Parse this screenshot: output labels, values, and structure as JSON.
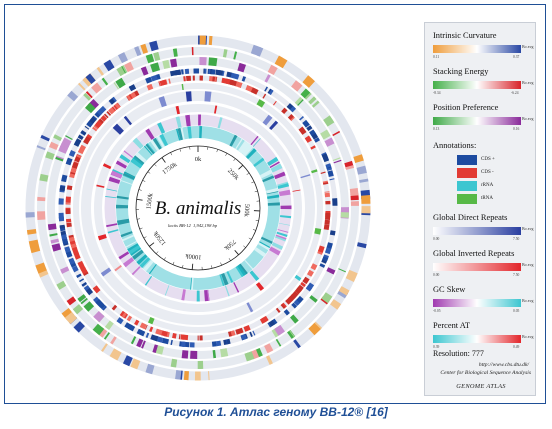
{
  "diagram": {
    "species": "B. animalis",
    "strain_line": "lactis BB-12",
    "genome_size": "1,942,198 bp",
    "scale_labels": [
      "0k",
      "250k",
      "500k",
      "750k",
      "1000k",
      "1250k",
      "1500k",
      "1750k"
    ],
    "legend": {
      "intrinsic_curvature": {
        "title": "Intrinsic Curvature",
        "min": "0.11",
        "max": "0.37",
        "unit": "Bo avg",
        "colors": [
          "#ef9d3c",
          "#ffffff",
          "#2948a4"
        ]
      },
      "stacking_energy": {
        "title": "Stacking Energy",
        "min": "-8.34",
        "max": "-6.24",
        "unit": "Bo avg",
        "colors": [
          "#45b04a",
          "#ffffff",
          "#d8232a"
        ]
      },
      "position_preference": {
        "title": "Position Preference",
        "min": "0.13",
        "max": "0.16",
        "unit": "Bo avg",
        "colors": [
          "#3fa948",
          "#ffffff",
          "#8a2a9a"
        ]
      },
      "annotations_title": "Annotations:",
      "annotations": [
        {
          "label": "CDS +",
          "color": "#1d4ba0"
        },
        {
          "label": "CDS -",
          "color": "#e23b34"
        },
        {
          "label": "rRNA",
          "color": "#3cc6d0"
        },
        {
          "label": "tRNA",
          "color": "#57b947"
        }
      ],
      "global_direct_repeats": {
        "title": "Global Direct Repeats",
        "min": "0.00",
        "max": "7.50",
        "unit": "Bo avg",
        "colors": [
          "#ffffff",
          "#2a3fa0"
        ]
      },
      "global_inverted_repeats": {
        "title": "Global Inverted Repeats",
        "min": "0.00",
        "max": "7.50",
        "unit": "Bo avg",
        "colors": [
          "#ffffff",
          "#e3262b"
        ]
      },
      "gc_skew": {
        "title": "GC Skew",
        "min": "-0.05",
        "max": "0.05",
        "unit": "Bo avg",
        "colors": [
          "#a03ab0",
          "#ffffff",
          "#3cc6d0"
        ]
      },
      "percent_at": {
        "title": "Percent AT",
        "min": "0.39",
        "max": "0.49",
        "unit": "Bo avg",
        "colors": [
          "#3cc6d0",
          "#ffffff",
          "#e3262b"
        ]
      },
      "resolution": "Resolution: 777",
      "url": "http://www.cbs.dtu.dk/",
      "center": "Center for Biological Sequence Analysis",
      "footer": "GENOME ATLAS"
    }
  },
  "caption": "Рисунок 1. Атлас геному BB-12® [16]"
}
